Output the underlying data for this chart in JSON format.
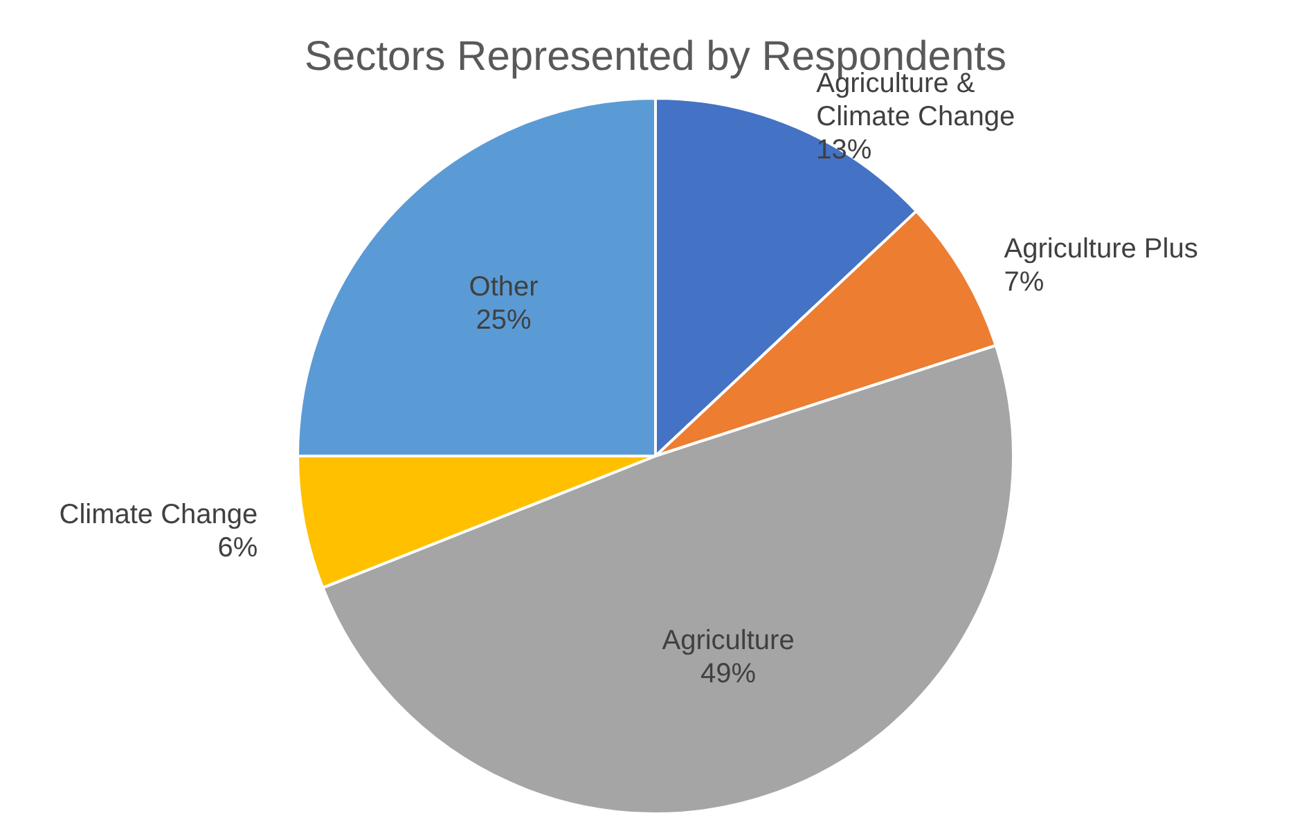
{
  "chart_data": {
    "type": "pie",
    "title": "Sectors Represented by Respondents",
    "categories": [
      "Agriculture & Climate Change",
      "Agriculture Plus",
      "Agriculture",
      "Climate Change",
      "Other"
    ],
    "values": [
      13,
      7,
      49,
      6,
      25
    ],
    "colors": [
      "#4472c4",
      "#ed7d31",
      "#a5a5a5",
      "#ffc000",
      "#5b9bd5"
    ],
    "value_labels": [
      "13%",
      "7%",
      "49%",
      "6%",
      "25%"
    ],
    "legend": false
  }
}
